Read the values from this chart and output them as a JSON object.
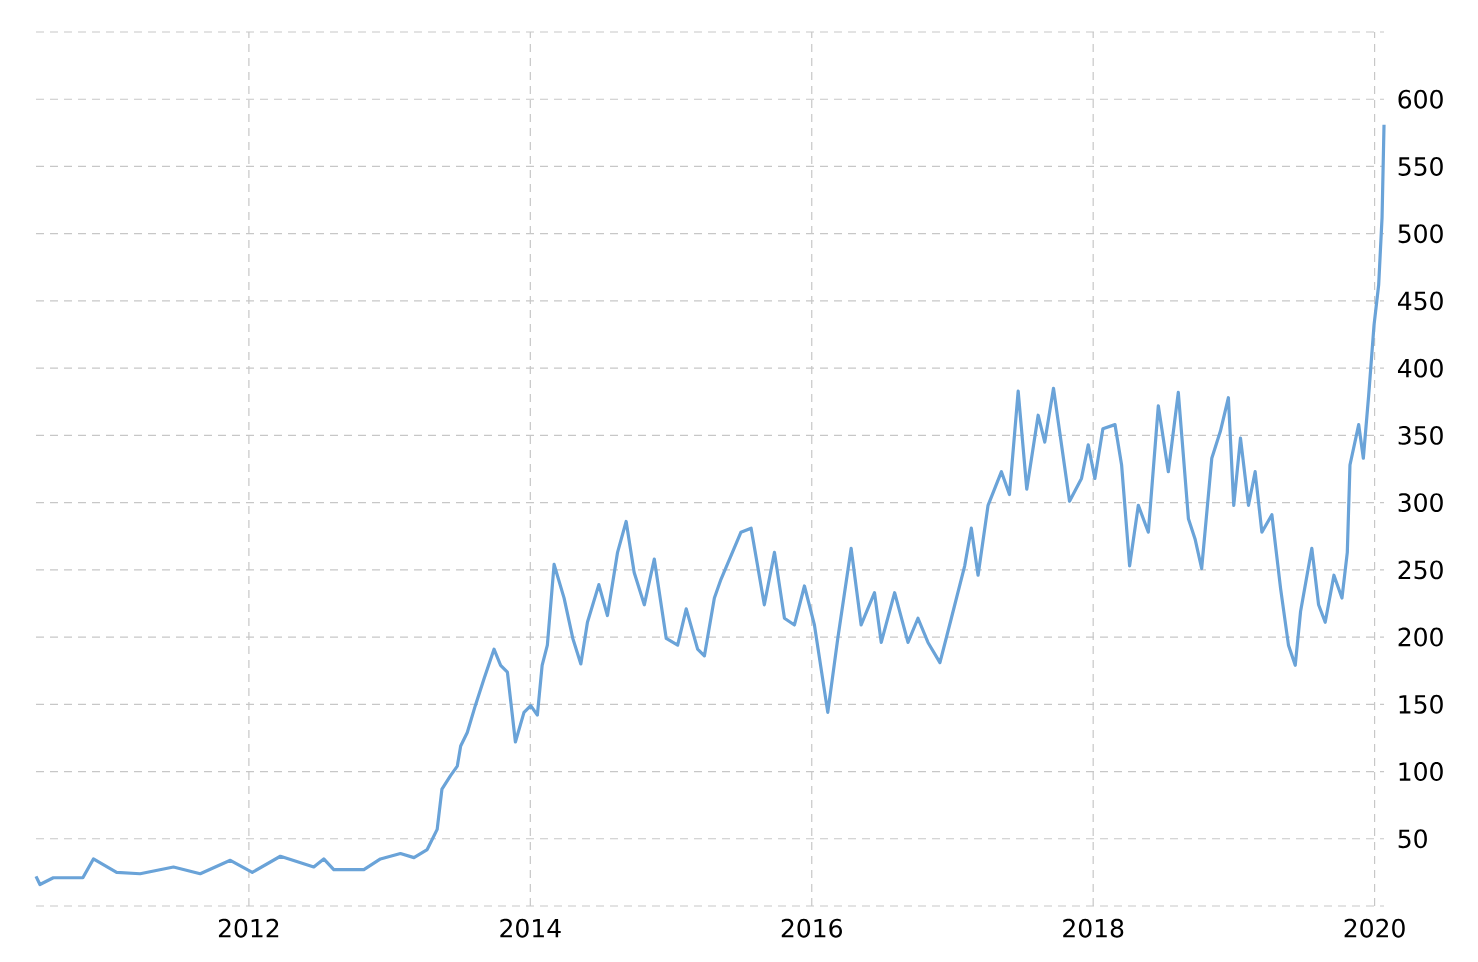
{
  "chart_data": {
    "type": "line",
    "x": [
      2010.487,
      2010.515,
      2010.61,
      2010.82,
      2010.895,
      2011.06,
      2011.227,
      2011.464,
      2011.654,
      2011.868,
      2012.024,
      2012.224,
      2012.461,
      2012.532,
      2012.603,
      2012.817,
      2012.935,
      2013.077,
      2013.173,
      2013.267,
      2013.338,
      2013.372,
      2013.433,
      2013.481,
      2013.505,
      2013.552,
      2013.609,
      2013.671,
      2013.742,
      2013.789,
      2013.837,
      2013.894,
      2013.955,
      2014.003,
      2014.05,
      2014.084,
      2014.121,
      2014.169,
      2014.24,
      2014.302,
      2014.359,
      2014.406,
      2014.487,
      2014.548,
      2014.62,
      2014.681,
      2014.738,
      2014.81,
      2014.881,
      2014.966,
      2015.047,
      2015.108,
      2015.189,
      2015.237,
      2015.308,
      2015.355,
      2015.497,
      2015.569,
      2015.663,
      2015.735,
      2015.806,
      2015.877,
      2015.948,
      2016.019,
      2016.114,
      2016.185,
      2016.28,
      2016.351,
      2016.446,
      2016.494,
      2016.589,
      2016.684,
      2016.755,
      2016.826,
      2016.911,
      2016.992,
      2017.087,
      2017.134,
      2017.182,
      2017.253,
      2017.348,
      2017.405,
      2017.467,
      2017.528,
      2017.609,
      2017.656,
      2017.718,
      2017.775,
      2017.832,
      2017.917,
      2017.965,
      2018.012,
      2018.069,
      2018.155,
      2018.202,
      2018.259,
      2018.321,
      2018.392,
      2018.463,
      2018.534,
      2018.605,
      2018.677,
      2018.724,
      2018.771,
      2018.843,
      2018.904,
      2018.961,
      2018.999,
      2019.047,
      2019.104,
      2019.151,
      2019.199,
      2019.27,
      2019.332,
      2019.388,
      2019.436,
      2019.474,
      2019.554,
      2019.602,
      2019.649,
      2019.711,
      2019.768,
      2019.806,
      2019.825,
      2019.887,
      2019.92,
      2019.958,
      2019.996,
      2020.029,
      2020.053,
      2020.067
    ],
    "series": [
      {
        "color": "#6aa3d8",
        "values": [
          22,
          16,
          21,
          21,
          35,
          25,
          24,
          29,
          24,
          34,
          25,
          37,
          29,
          35,
          27,
          27,
          35,
          39,
          36,
          42,
          57,
          87,
          97,
          104,
          119,
          129,
          149,
          169,
          191,
          179,
          174,
          122,
          144,
          149,
          142,
          179,
          194,
          254,
          229,
          199,
          180,
          211,
          239,
          216,
          263,
          286,
          248,
          224,
          258,
          199,
          194,
          221,
          191,
          186,
          229,
          243,
          278,
          281,
          224,
          263,
          214,
          209,
          238,
          209,
          144,
          199,
          266,
          209,
          233,
          196,
          233,
          196,
          214,
          196,
          181,
          214,
          253,
          281,
          246,
          298,
          323,
          306,
          383,
          310,
          365,
          345,
          385,
          343,
          301,
          318,
          343,
          318,
          355,
          358,
          328,
          253,
          298,
          278,
          372,
          323,
          382,
          288,
          273,
          251,
          333,
          353,
          378,
          298,
          348,
          298,
          323,
          278,
          291,
          236,
          194,
          179,
          219,
          266,
          224,
          211,
          246,
          229,
          263,
          328,
          358,
          333,
          380,
          432,
          462,
          512,
          581
        ]
      }
    ],
    "xlim": [
      2010.487,
      2020.067
    ],
    "ylim": [
      0,
      650
    ],
    "xticks": [
      2012,
      2014,
      2016,
      2018,
      2020
    ],
    "yticks": [
      {
        "value": 0,
        "label": null
      },
      50,
      100,
      150,
      200,
      250,
      300,
      350,
      400,
      450,
      500,
      550,
      600,
      {
        "value": 650,
        "label": null
      }
    ],
    "grid": true,
    "line_style": "solid",
    "marker": "none"
  }
}
